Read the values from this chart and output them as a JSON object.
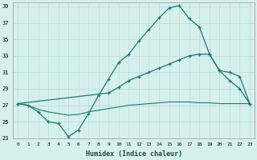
{
  "xlabel": "Humidex (Indice chaleur)",
  "bg_color": "#d6f0ee",
  "grid_color": "#b8dbd8",
  "line_color": "#1a7a6e",
  "xlim": [
    -0.5,
    23.5
  ],
  "ylim": [
    23,
    39.5
  ],
  "yticks": [
    23,
    25,
    27,
    29,
    31,
    33,
    35,
    37,
    39
  ],
  "xticks": [
    0,
    1,
    2,
    3,
    4,
    5,
    6,
    7,
    8,
    9,
    10,
    11,
    12,
    13,
    14,
    15,
    16,
    17,
    18,
    19,
    20,
    21,
    22,
    23
  ],
  "line1_x": [
    0,
    1,
    2,
    3,
    4,
    5,
    6,
    7,
    8,
    9,
    10,
    11,
    12,
    13,
    14,
    15,
    16,
    17,
    18,
    19,
    20,
    21,
    22,
    23
  ],
  "line1_y": [
    27.2,
    27.0,
    26.2,
    25.0,
    24.8,
    23.2,
    24.0,
    26.0,
    28.2,
    30.2,
    32.2,
    33.2,
    34.8,
    36.2,
    37.6,
    38.8,
    39.1,
    37.5,
    36.5,
    33.2,
    31.2,
    30.0,
    29.0,
    27.2
  ],
  "line2_x": [
    0,
    9,
    10,
    11,
    12,
    13,
    14,
    15,
    16,
    17,
    18,
    19,
    20,
    21,
    22,
    23
  ],
  "line2_y": [
    27.2,
    28.5,
    29.2,
    30.0,
    30.5,
    31.0,
    31.5,
    32.0,
    32.5,
    33.0,
    33.2,
    33.2,
    31.2,
    31.0,
    30.5,
    27.2
  ],
  "line3_x": [
    0,
    1,
    2,
    3,
    4,
    5,
    6,
    7,
    8,
    9,
    10,
    11,
    12,
    13,
    14,
    15,
    16,
    17,
    18,
    19,
    20,
    21,
    22,
    23
  ],
  "line3_y": [
    27.2,
    27.0,
    26.5,
    26.2,
    26.0,
    25.8,
    25.9,
    26.2,
    26.4,
    26.6,
    26.8,
    27.0,
    27.1,
    27.2,
    27.3,
    27.4,
    27.4,
    27.4,
    27.3,
    27.3,
    27.2,
    27.2,
    27.2,
    27.2
  ]
}
